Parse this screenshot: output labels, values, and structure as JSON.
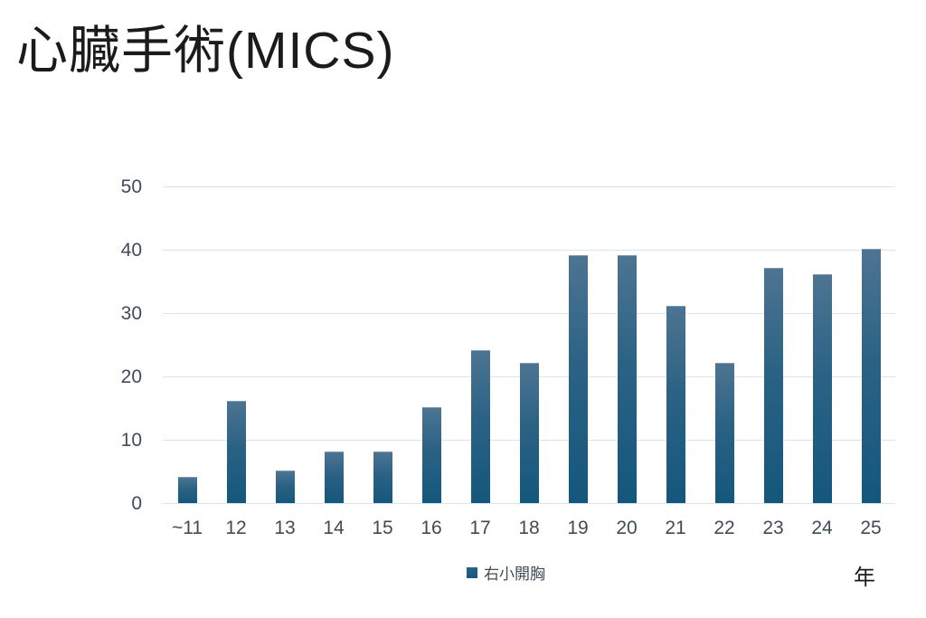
{
  "title": "心臓手術(MICS)",
  "chart_data": {
    "type": "bar",
    "title": "心臓手術(MICS)",
    "categories": [
      "~11",
      "12",
      "13",
      "14",
      "15",
      "16",
      "17",
      "18",
      "19",
      "20",
      "21",
      "22",
      "23",
      "24",
      "25"
    ],
    "series": [
      {
        "name": "右小開胸",
        "values": [
          4,
          16,
          5,
          8,
          8,
          15,
          24,
          22,
          39,
          39,
          31,
          22,
          37,
          36,
          40
        ]
      }
    ],
    "xlabel": "年",
    "ylabel": "",
    "ylim": [
      0,
      50
    ],
    "yticks": [
      0,
      10,
      20,
      30,
      40,
      50
    ],
    "grid": true,
    "legend_position": "bottom-center",
    "colors": {
      "bar_gradient_top": "#4d7492",
      "bar_gradient_bottom": "#14577c",
      "gridline": "#dbe5f2",
      "tick_label": "#414b57",
      "title_text": "#1b1b1b"
    }
  }
}
